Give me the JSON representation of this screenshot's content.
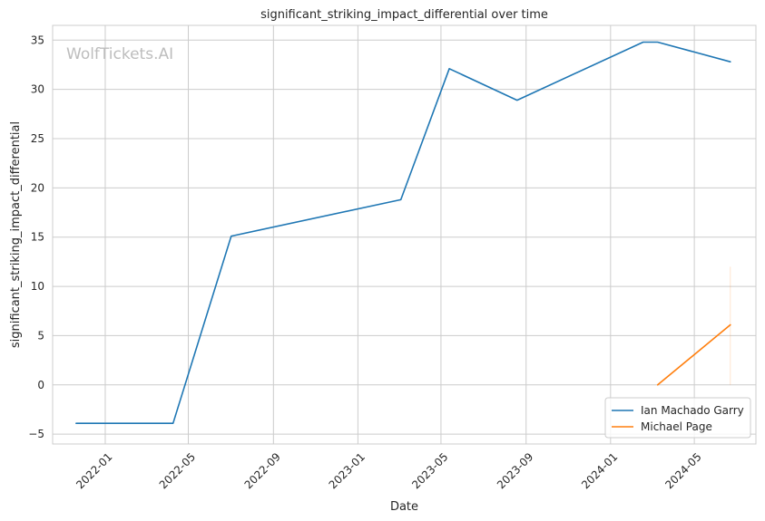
{
  "chart_data": {
    "type": "line",
    "title": "significant_striking_impact_differential over time",
    "xlabel": "Date",
    "ylabel": "significant_striking_impact_differential",
    "watermark": "WolfTickets.AI",
    "x_ticks": [
      "2022-01",
      "2022-05",
      "2022-09",
      "2023-01",
      "2023-05",
      "2023-09",
      "2024-01",
      "2024-05"
    ],
    "y_ticks": [
      -5,
      0,
      5,
      10,
      15,
      20,
      25,
      30,
      35
    ],
    "xlim": [
      "2021-10-17",
      "2024-07-29"
    ],
    "ylim": [
      -6,
      36.5
    ],
    "grid": true,
    "legend_position": "bottom-right",
    "series": [
      {
        "name": "Ian Machado Garry",
        "color": "#1f77b4",
        "points": [
          {
            "x": "2021-11-20",
            "y": -3.9
          },
          {
            "x": "2022-04-09",
            "y": -3.9
          },
          {
            "x": "2022-07-02",
            "y": 15.1
          },
          {
            "x": "2023-03-04",
            "y": 18.8
          },
          {
            "x": "2023-05-13",
            "y": 32.1
          },
          {
            "x": "2023-08-19",
            "y": 28.9
          },
          {
            "x": "2024-02-17",
            "y": 34.8
          },
          {
            "x": "2024-03-09",
            "y": 34.8
          },
          {
            "x": "2024-06-22",
            "y": 32.8
          }
        ]
      },
      {
        "name": "Michael Page",
        "color": "#ff7f0e",
        "points": [
          {
            "x": "2024-03-09",
            "y": 0.0
          },
          {
            "x": "2024-06-22",
            "y": 6.1
          }
        ],
        "band": {
          "x": "2024-06-22",
          "low": 0.0,
          "high": 12.0
        }
      }
    ]
  }
}
